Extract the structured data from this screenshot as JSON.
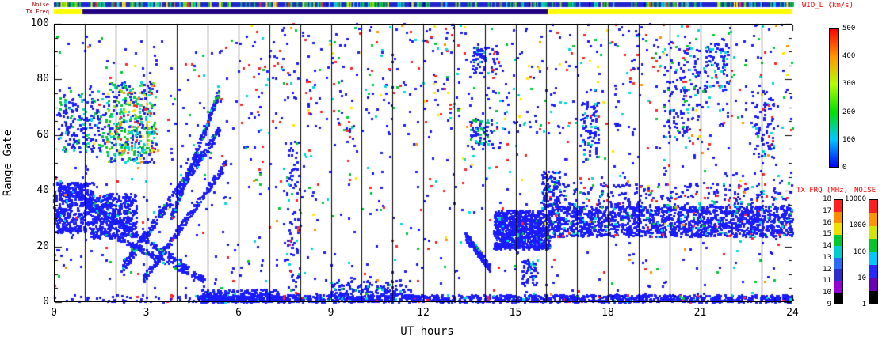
{
  "chart_data": {
    "type": "scatter",
    "description": "SuperDARN radar range-time summary plot: perpendicular spectral width per range gate vs universal time, with sky-noise and TX-frequency strips on top and three colorbars on the right",
    "xlabel": "UT hours",
    "ylabel": "Range Gate",
    "xlim": [
      0,
      24
    ],
    "ylim": [
      0,
      100
    ],
    "x_ticks": [
      0,
      3,
      6,
      9,
      12,
      15,
      18,
      21,
      24
    ],
    "y_ticks": [
      0,
      20,
      40,
      60,
      80,
      100
    ],
    "hour_gridlines": true,
    "seed": 1337,
    "palette": {
      "blue": "#1b1bff",
      "dkblue": "#0000b4",
      "cyan": "#00d8d8",
      "green": "#00c832",
      "lime": "#7ce600",
      "yellow": "#ffe600",
      "orange": "#ff9100",
      "red": "#ff2424"
    },
    "strips": {
      "noise_label": "Noise",
      "txfreq_label": "TX Freq",
      "noise_base": "#2424cf",
      "noise_speck_count": 320,
      "noise_speck_colors": [
        [
          "green",
          35
        ],
        [
          "cyan",
          18
        ],
        [
          "lime",
          14
        ],
        [
          "blue",
          15
        ],
        [
          "yellow",
          8
        ],
        [
          "red",
          6
        ],
        [
          "dkblue",
          4
        ]
      ],
      "tx_segments": [
        {
          "x0": 0.0,
          "x1": 0.93,
          "color": "#ffff00"
        },
        {
          "x0": 0.93,
          "x1": 16.05,
          "color": "#200080"
        },
        {
          "x0": 16.05,
          "x1": 24.0,
          "color": "#ffff00"
        }
      ]
    },
    "colorbars": {
      "wid": {
        "title": "WID_L (km/s)",
        "min": 0,
        "max": 500,
        "ticks": [
          0,
          100,
          200,
          300,
          400,
          500
        ],
        "gradient": [
          "#0000ff",
          "#00c8ff",
          "#00e100",
          "#b4ff00",
          "#ff9600",
          "#ff0000"
        ]
      },
      "txfrq": {
        "title": "TX FRQ (MHz)",
        "ticks": [
          9,
          10,
          11,
          12,
          13,
          14,
          15,
          16,
          17,
          18
        ],
        "cells": [
          "#000000",
          "#9400d3",
          "#2e2ecc",
          "#2a6aff",
          "#00cdcd",
          "#00c832",
          "#f0e000",
          "#ff8c00",
          "#ff2020"
        ]
      },
      "noise": {
        "title": "NOISE",
        "ticks": [
          "1",
          "10",
          "100",
          "1000",
          "10000"
        ],
        "cells": [
          "#000000",
          "#6a00b4",
          "#2828ff",
          "#00c8ff",
          "#00c828",
          "#d2e600",
          "#ff9600",
          "#ff1e1e"
        ]
      }
    },
    "clusters": [
      {
        "name": "bottom-band",
        "type": "rect",
        "x": [
          4.6,
          24
        ],
        "y": [
          0,
          2.6
        ],
        "n": 1500,
        "colors": [
          [
            "blue",
            90
          ],
          [
            "cyan",
            4
          ],
          [
            "green",
            2
          ],
          [
            "red",
            2
          ],
          [
            "dkblue",
            2
          ]
        ]
      },
      {
        "name": "bottom-band-thick",
        "type": "rect",
        "x": [
          4.8,
          7.3
        ],
        "y": [
          0,
          4.5
        ],
        "n": 260,
        "colors": [
          [
            "blue",
            95
          ],
          [
            "cyan",
            5
          ]
        ]
      },
      {
        "name": "bottom-sparse-early",
        "type": "rect",
        "x": [
          0,
          4.6
        ],
        "y": [
          0,
          2.6
        ],
        "n": 55,
        "colors": [
          [
            "blue",
            85
          ],
          [
            "red",
            15
          ]
        ]
      },
      {
        "name": "dawn-core-a",
        "type": "rect",
        "x": [
          0,
          1.3
        ],
        "y": [
          25,
          43
        ],
        "n": 430,
        "colors": [
          [
            "blue",
            96
          ],
          [
            "cyan",
            4
          ]
        ]
      },
      {
        "name": "dawn-core-b",
        "type": "rect",
        "x": [
          1.2,
          2.7
        ],
        "y": [
          23,
          39
        ],
        "n": 470,
        "colors": [
          [
            "blue",
            93
          ],
          [
            "cyan",
            4
          ],
          [
            "green",
            3
          ]
        ]
      },
      {
        "name": "dawn-upper",
        "type": "rect",
        "x": [
          0.15,
          1.7
        ],
        "y": [
          54,
          76
        ],
        "n": 200,
        "colors": [
          [
            "blue",
            74
          ],
          [
            "cyan",
            13
          ],
          [
            "green",
            13
          ]
        ]
      },
      {
        "name": "wide-spectral-patch",
        "type": "rect",
        "x": [
          1.7,
          3.3
        ],
        "y": [
          50,
          79
        ],
        "n": 390,
        "colors": [
          [
            "green",
            27
          ],
          [
            "cyan",
            25
          ],
          [
            "blue",
            24
          ],
          [
            "lime",
            10
          ],
          [
            "yellow",
            6
          ],
          [
            "orange",
            4
          ],
          [
            "red",
            4
          ]
        ]
      },
      {
        "name": "streak-rise-1",
        "type": "streak",
        "x": [
          2.2,
          5.4
        ],
        "y": [
          12,
          62
        ],
        "w": 4,
        "n": 300,
        "colors": [
          [
            "blue",
            88
          ],
          [
            "cyan",
            7
          ],
          [
            "green",
            5
          ]
        ]
      },
      {
        "name": "streak-rise-2",
        "type": "streak",
        "x": [
          2.9,
          5.6
        ],
        "y": [
          8,
          50
        ],
        "w": 3,
        "n": 220,
        "colors": [
          [
            "blue",
            95
          ],
          [
            "cyan",
            5
          ]
        ]
      },
      {
        "name": "streak-rise-3",
        "type": "streak",
        "x": [
          3.8,
          5.35
        ],
        "y": [
          30,
          75
        ],
        "w": 3,
        "n": 210,
        "colors": [
          [
            "blue",
            84
          ],
          [
            "cyan",
            9
          ],
          [
            "green",
            7
          ]
        ]
      },
      {
        "name": "streak-fall-1",
        "type": "streak",
        "x": [
          0,
          4.4
        ],
        "y": [
          44,
          12
        ],
        "w": 2.5,
        "n": 230,
        "colors": [
          [
            "blue",
            96
          ],
          [
            "cyan",
            4
          ]
        ]
      },
      {
        "name": "streak-fall-2",
        "type": "streak",
        "x": [
          1.5,
          4.9
        ],
        "y": [
          26,
          8
        ],
        "w": 2,
        "n": 160,
        "colors": [
          [
            "blue",
            95
          ],
          [
            "green",
            5
          ]
        ]
      },
      {
        "name": "dawn-background",
        "type": "rect",
        "x": [
          0,
          6
        ],
        "y": [
          5,
          96
        ],
        "n": 260,
        "colors": [
          [
            "blue",
            70
          ],
          [
            "red",
            10
          ],
          [
            "green",
            8
          ],
          [
            "cyan",
            8
          ],
          [
            "yellow",
            2
          ],
          [
            "orange",
            2
          ]
        ]
      },
      {
        "name": "midday-background",
        "type": "rect",
        "x": [
          6,
          14
        ],
        "y": [
          2,
          100
        ],
        "n": 340,
        "colors": [
          [
            "blue",
            57
          ],
          [
            "red",
            16
          ],
          [
            "green",
            9
          ],
          [
            "cyan",
            10
          ],
          [
            "yellow",
            4
          ],
          [
            "orange",
            4
          ]
        ]
      },
      {
        "name": "column-near-8",
        "type": "rect",
        "x": [
          7.55,
          8.0
        ],
        "y": [
          0,
          58
        ],
        "n": 90,
        "colors": [
          [
            "blue",
            85
          ],
          [
            "cyan",
            5
          ],
          [
            "green",
            5
          ],
          [
            "red",
            5
          ]
        ]
      },
      {
        "name": "low-blob-10",
        "type": "rect",
        "x": [
          9.0,
          11.6
        ],
        "y": [
          2,
          8
        ],
        "n": 150,
        "colors": [
          [
            "blue",
            93
          ],
          [
            "cyan",
            4
          ],
          [
            "green",
            3
          ]
        ]
      },
      {
        "name": "streak-13.8",
        "type": "streak",
        "x": [
          13.35,
          14.2
        ],
        "y": [
          24,
          12
        ],
        "w": 3,
        "n": 150,
        "colors": [
          [
            "blue",
            92
          ],
          [
            "cyan",
            5
          ],
          [
            "green",
            3
          ]
        ]
      },
      {
        "name": "band-14-16",
        "type": "rect",
        "x": [
          14.3,
          16.15
        ],
        "y": [
          19,
          33
        ],
        "n": 900,
        "colors": [
          [
            "blue",
            96
          ],
          [
            "cyan",
            3
          ],
          [
            "green",
            1
          ]
        ]
      },
      {
        "name": "band-16-24",
        "type": "rect",
        "x": [
          16.15,
          24
        ],
        "y": [
          23.5,
          34.5
        ],
        "n": 1600,
        "colors": [
          [
            "blue",
            92
          ],
          [
            "cyan",
            4
          ],
          [
            "green",
            2
          ],
          [
            "red",
            2
          ]
        ]
      },
      {
        "name": "band-fringe",
        "type": "rect",
        "x": [
          16,
          24
        ],
        "y": [
          34.5,
          43
        ],
        "n": 260,
        "colors": [
          [
            "blue",
            80
          ],
          [
            "red",
            7
          ],
          [
            "green",
            6
          ],
          [
            "cyan",
            7
          ]
        ]
      },
      {
        "name": "patch-16",
        "type": "rect",
        "x": [
          15.85,
          16.45
        ],
        "y": [
          33,
          47
        ],
        "n": 110,
        "colors": [
          [
            "blue",
            92
          ],
          [
            "cyan",
            8
          ]
        ]
      },
      {
        "name": "dusk-background",
        "type": "rect",
        "x": [
          14,
          24
        ],
        "y": [
          2,
          100
        ],
        "n": 430,
        "colors": [
          [
            "blue",
            60
          ],
          [
            "red",
            15
          ],
          [
            "green",
            9
          ],
          [
            "cyan",
            9
          ],
          [
            "yellow",
            3
          ],
          [
            "orange",
            4
          ]
        ]
      },
      {
        "name": "blob-14-60",
        "type": "rect",
        "x": [
          13.5,
          14.3
        ],
        "y": [
          55,
          66
        ],
        "n": 80,
        "colors": [
          [
            "blue",
            60
          ],
          [
            "green",
            22
          ],
          [
            "cyan",
            18
          ]
        ]
      },
      {
        "name": "blob-14-88",
        "type": "rect",
        "x": [
          13.6,
          14.4
        ],
        "y": [
          82,
          93
        ],
        "n": 70,
        "colors": [
          [
            "blue",
            88
          ],
          [
            "cyan",
            12
          ]
        ]
      },
      {
        "name": "blob-17.4",
        "type": "rect",
        "x": [
          17.1,
          17.7
        ],
        "y": [
          52,
          72
        ],
        "n": 80,
        "colors": [
          [
            "blue",
            85
          ],
          [
            "cyan",
            10
          ],
          [
            "green",
            5
          ]
        ]
      },
      {
        "name": "blob-20.4",
        "type": "rect",
        "x": [
          19.8,
          21.0
        ],
        "y": [
          58,
          92
        ],
        "n": 120,
        "colors": [
          [
            "blue",
            80
          ],
          [
            "cyan",
            10
          ],
          [
            "green",
            10
          ]
        ]
      },
      {
        "name": "blob-21.5",
        "type": "rect",
        "x": [
          21.1,
          21.9
        ],
        "y": [
          76,
          93
        ],
        "n": 80,
        "colors": [
          [
            "blue",
            85
          ],
          [
            "cyan",
            15
          ]
        ]
      },
      {
        "name": "blob-23",
        "type": "rect",
        "x": [
          22.7,
          23.4
        ],
        "y": [
          52,
          76
        ],
        "n": 80,
        "colors": [
          [
            "blue",
            85
          ],
          [
            "cyan",
            10
          ],
          [
            "red",
            5
          ]
        ]
      },
      {
        "name": "blob-15.4-low",
        "type": "rect",
        "x": [
          15.2,
          15.7
        ],
        "y": [
          6,
          16
        ],
        "n": 60,
        "colors": [
          [
            "blue",
            90
          ],
          [
            "cyan",
            10
          ]
        ]
      },
      {
        "name": "upper-bg-left",
        "type": "rect",
        "x": [
          6,
          14
        ],
        "y": [
          60,
          100
        ],
        "n": 150,
        "colors": [
          [
            "blue",
            55
          ],
          [
            "red",
            20
          ],
          [
            "green",
            10
          ],
          [
            "cyan",
            10
          ],
          [
            "yellow",
            5
          ]
        ]
      },
      {
        "name": "upper-bg-right",
        "type": "rect",
        "x": [
          14,
          24
        ],
        "y": [
          60,
          100
        ],
        "n": 200,
        "colors": [
          [
            "blue",
            62
          ],
          [
            "red",
            14
          ],
          [
            "cyan",
            12
          ],
          [
            "green",
            8
          ],
          [
            "yellow",
            4
          ]
        ]
      }
    ]
  }
}
